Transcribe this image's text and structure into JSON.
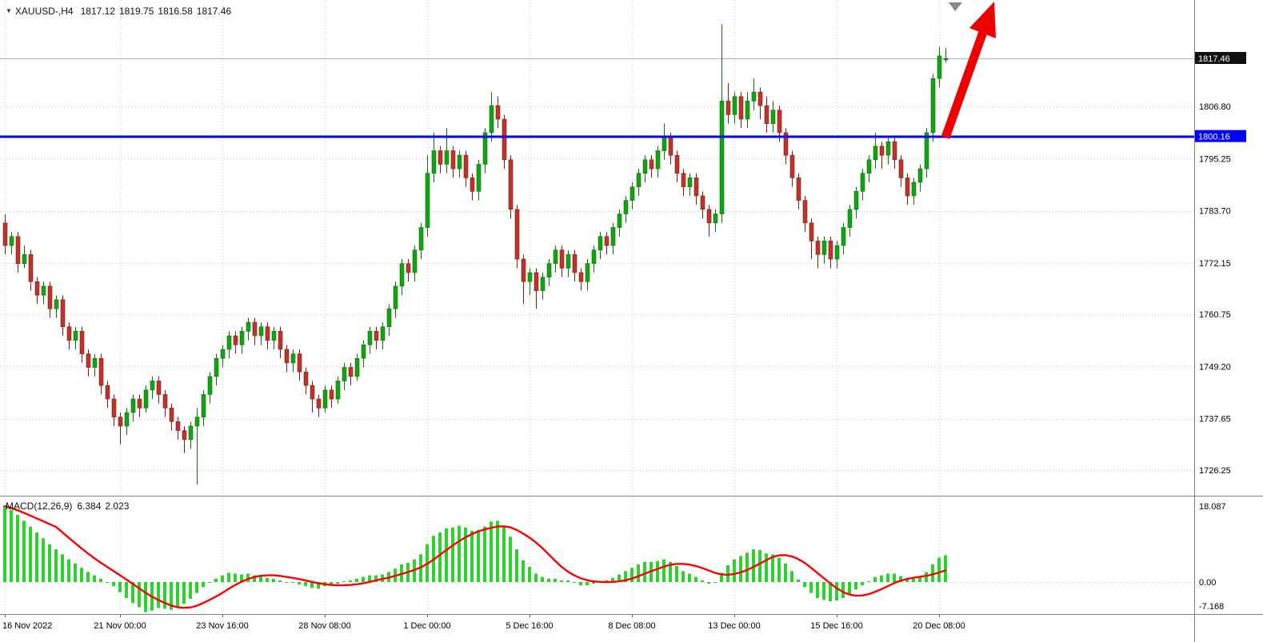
{
  "header": {
    "symbol_period": "XAUUSD-,H4",
    "open": "1817.12",
    "high": "1819.75",
    "low": "1816.58",
    "close": "1817.46"
  },
  "chart_data": {
    "type": "candlestick",
    "title": "XAUUSD-,H4",
    "symbol": "XAUUSD-",
    "timeframe": "H4",
    "grid": "dotted",
    "ylim": [
      1721,
      1830
    ],
    "current_ohlc": {
      "open": 1817.12,
      "high": 1819.75,
      "low": 1816.58,
      "close": 1817.46
    },
    "y_axis": {
      "bid_price": 1817.46,
      "labels": [
        {
          "text": "1817.46",
          "price": 1817.46,
          "type": "bid"
        },
        {
          "text": "1806.80",
          "price": 1806.8,
          "type": "grid"
        },
        {
          "text": "1800.16",
          "price": 1800.16,
          "type": "hline"
        },
        {
          "text": "1795.25",
          "price": 1795.25,
          "type": "grid"
        },
        {
          "text": "1783.70",
          "price": 1783.7,
          "type": "grid"
        },
        {
          "text": "1772.15",
          "price": 1772.15,
          "type": "grid"
        },
        {
          "text": "1760.75",
          "price": 1760.75,
          "type": "grid"
        },
        {
          "text": "1749.20",
          "price": 1749.2,
          "type": "grid"
        },
        {
          "text": "1737.65",
          "price": 1737.65,
          "type": "grid"
        },
        {
          "text": "1726.25",
          "price": 1726.25,
          "type": "grid"
        }
      ]
    },
    "x_axis": {
      "labels": [
        "16 Nov 2022",
        "21 Nov 00:00",
        "23 Nov 16:00",
        "28 Nov 08:00",
        "1 Dec 00:00",
        "5 Dec 16:00",
        "8 Dec 08:00",
        "13 Dec 00:00",
        "15 Dec 16:00",
        "20 Dec 08:00"
      ],
      "indices": [
        0,
        18,
        34,
        50,
        66,
        82,
        98,
        114,
        130,
        146
      ]
    },
    "horizontal_line": {
      "price": 1800.16,
      "label": "1800.16",
      "color": "#0000ff"
    },
    "trend_arrow": {
      "direction": "up",
      "color": "#ee0000"
    },
    "colors": {
      "bull": "#12a312",
      "bull_border": "#0a6e0a",
      "bear": "#c03328",
      "bear_border": "#7d1d14",
      "grid": "#c2c2c2",
      "macd_hist": "#2bd42b",
      "macd_signal": "#ff0000",
      "bid_badge": "#111111"
    },
    "candles": [
      [
        1781,
        1783,
        1774,
        1776
      ],
      [
        1776,
        1779,
        1774,
        1778
      ],
      [
        1778,
        1779,
        1770,
        1772
      ],
      [
        1772,
        1776,
        1771,
        1774
      ],
      [
        1774,
        1775,
        1766,
        1768
      ],
      [
        1768,
        1769,
        1763,
        1765
      ],
      [
        1765,
        1768,
        1763,
        1767
      ],
      [
        1767,
        1768,
        1760,
        1762
      ],
      [
        1762,
        1765,
        1760,
        1764
      ],
      [
        1764,
        1765,
        1756,
        1758
      ],
      [
        1758,
        1759,
        1753,
        1755
      ],
      [
        1755,
        1758,
        1753,
        1757
      ],
      [
        1757,
        1758,
        1750,
        1752
      ],
      [
        1752,
        1753,
        1747,
        1749
      ],
      [
        1749,
        1752,
        1747,
        1751
      ],
      [
        1751,
        1752,
        1743,
        1745
      ],
      [
        1745,
        1746,
        1740,
        1742
      ],
      [
        1742,
        1743,
        1736,
        1738
      ],
      [
        1738,
        1739,
        1732,
        1736
      ],
      [
        1736,
        1740,
        1734,
        1739
      ],
      [
        1739,
        1743,
        1737,
        1742
      ],
      [
        1742,
        1743,
        1738,
        1740
      ],
      [
        1740,
        1745,
        1739,
        1744
      ],
      [
        1744,
        1747,
        1742,
        1746
      ],
      [
        1746,
        1747,
        1741,
        1743
      ],
      [
        1743,
        1744,
        1738,
        1740
      ],
      [
        1740,
        1741,
        1735,
        1737
      ],
      [
        1737,
        1738,
        1733,
        1735
      ],
      [
        1735,
        1736,
        1730,
        1733
      ],
      [
        1733,
        1737,
        1731,
        1736
      ],
      [
        1736,
        1740,
        1723,
        1738
      ],
      [
        1738,
        1744,
        1736,
        1743
      ],
      [
        1743,
        1748,
        1741,
        1747
      ],
      [
        1747,
        1752,
        1745,
        1751
      ],
      [
        1751,
        1754,
        1749,
        1753
      ],
      [
        1753,
        1757,
        1751,
        1756
      ],
      [
        1756,
        1757,
        1752,
        1754
      ],
      [
        1754,
        1758,
        1752,
        1757
      ],
      [
        1757,
        1760,
        1755,
        1759
      ],
      [
        1759,
        1760,
        1754,
        1756
      ],
      [
        1756,
        1759,
        1754,
        1758
      ],
      [
        1758,
        1759,
        1753,
        1755
      ],
      [
        1755,
        1758,
        1753,
        1757
      ],
      [
        1757,
        1758,
        1751,
        1753
      ],
      [
        1753,
        1754,
        1748,
        1750
      ],
      [
        1750,
        1753,
        1748,
        1752
      ],
      [
        1752,
        1753,
        1746,
        1748
      ],
      [
        1748,
        1749,
        1743,
        1745
      ],
      [
        1745,
        1746,
        1739,
        1742
      ],
      [
        1742,
        1743,
        1738,
        1740
      ],
      [
        1740,
        1745,
        1739,
        1744
      ],
      [
        1744,
        1745,
        1740,
        1742
      ],
      [
        1742,
        1747,
        1741,
        1746
      ],
      [
        1746,
        1750,
        1744,
        1749
      ],
      [
        1749,
        1750,
        1745,
        1747
      ],
      [
        1747,
        1752,
        1746,
        1751
      ],
      [
        1751,
        1755,
        1749,
        1754
      ],
      [
        1754,
        1758,
        1752,
        1757
      ],
      [
        1757,
        1758,
        1753,
        1755
      ],
      [
        1755,
        1759,
        1753,
        1758
      ],
      [
        1758,
        1763,
        1756,
        1762
      ],
      [
        1762,
        1768,
        1760,
        1767
      ],
      [
        1767,
        1773,
        1765,
        1772
      ],
      [
        1772,
        1773,
        1768,
        1770
      ],
      [
        1770,
        1776,
        1768,
        1775
      ],
      [
        1775,
        1781,
        1773,
        1780
      ],
      [
        1780,
        1796,
        1778,
        1792
      ],
      [
        1792,
        1801,
        1790,
        1797
      ],
      [
        1797,
        1798,
        1792,
        1794
      ],
      [
        1794,
        1802,
        1792,
        1797
      ],
      [
        1797,
        1798,
        1791,
        1793
      ],
      [
        1793,
        1797,
        1791,
        1796
      ],
      [
        1796,
        1797,
        1789,
        1791
      ],
      [
        1791,
        1792,
        1786,
        1788
      ],
      [
        1788,
        1795,
        1786,
        1794
      ],
      [
        1794,
        1802,
        1792,
        1801
      ],
      [
        1801,
        1810,
        1799,
        1807
      ],
      [
        1807,
        1809,
        1802,
        1804
      ],
      [
        1804,
        1805,
        1793,
        1795
      ],
      [
        1795,
        1796,
        1782,
        1784
      ],
      [
        1784,
        1785,
        1771,
        1773
      ],
      [
        1773,
        1774,
        1763,
        1768
      ],
      [
        1768,
        1771,
        1765,
        1770
      ],
      [
        1770,
        1771,
        1762,
        1766
      ],
      [
        1766,
        1770,
        1764,
        1769
      ],
      [
        1769,
        1773,
        1767,
        1772
      ],
      [
        1772,
        1776,
        1770,
        1775
      ],
      [
        1775,
        1776,
        1769,
        1771
      ],
      [
        1771,
        1775,
        1769,
        1774
      ],
      [
        1774,
        1775,
        1768,
        1770
      ],
      [
        1770,
        1771,
        1766,
        1768
      ],
      [
        1768,
        1773,
        1766,
        1772
      ],
      [
        1772,
        1776,
        1770,
        1775
      ],
      [
        1775,
        1779,
        1773,
        1778
      ],
      [
        1778,
        1779,
        1774,
        1776
      ],
      [
        1776,
        1781,
        1774,
        1780
      ],
      [
        1780,
        1784,
        1778,
        1783
      ],
      [
        1783,
        1787,
        1781,
        1786
      ],
      [
        1786,
        1790,
        1784,
        1789
      ],
      [
        1789,
        1793,
        1787,
        1792
      ],
      [
        1792,
        1796,
        1790,
        1795
      ],
      [
        1795,
        1796,
        1791,
        1793
      ],
      [
        1793,
        1798,
        1791,
        1797
      ],
      [
        1797,
        1803,
        1795,
        1800
      ],
      [
        1800,
        1801,
        1794,
        1796
      ],
      [
        1796,
        1797,
        1790,
        1792
      ],
      [
        1792,
        1793,
        1787,
        1789
      ],
      [
        1789,
        1792,
        1787,
        1791
      ],
      [
        1791,
        1792,
        1785,
        1787
      ],
      [
        1787,
        1788,
        1782,
        1784
      ],
      [
        1784,
        1785,
        1778,
        1781
      ],
      [
        1781,
        1784,
        1779,
        1783
      ],
      [
        1783,
        1825,
        1781,
        1808
      ],
      [
        1808,
        1812,
        1803,
        1805
      ],
      [
        1805,
        1810,
        1803,
        1809
      ],
      [
        1809,
        1810,
        1802,
        1804
      ],
      [
        1804,
        1810,
        1802,
        1808
      ],
      [
        1808,
        1813,
        1806,
        1810
      ],
      [
        1810,
        1811,
        1804,
        1807
      ],
      [
        1807,
        1809,
        1801,
        1803
      ],
      [
        1803,
        1808,
        1801,
        1806
      ],
      [
        1806,
        1807,
        1799,
        1801
      ],
      [
        1801,
        1802,
        1794,
        1796
      ],
      [
        1796,
        1797,
        1789,
        1791
      ],
      [
        1791,
        1792,
        1784,
        1786
      ],
      [
        1786,
        1787,
        1779,
        1781
      ],
      [
        1781,
        1782,
        1773,
        1777
      ],
      [
        1777,
        1778,
        1771,
        1774
      ],
      [
        1774,
        1778,
        1772,
        1777
      ],
      [
        1777,
        1778,
        1771,
        1773
      ],
      [
        1773,
        1777,
        1771,
        1776
      ],
      [
        1776,
        1781,
        1774,
        1780
      ],
      [
        1780,
        1785,
        1778,
        1784
      ],
      [
        1784,
        1789,
        1782,
        1788
      ],
      [
        1788,
        1793,
        1786,
        1792
      ],
      [
        1792,
        1796,
        1790,
        1795
      ],
      [
        1795,
        1801,
        1793,
        1798
      ],
      [
        1798,
        1799,
        1793,
        1796
      ],
      [
        1796,
        1800,
        1794,
        1799
      ],
      [
        1799,
        1800,
        1793,
        1795
      ],
      [
        1795,
        1796,
        1789,
        1791
      ],
      [
        1791,
        1792,
        1785,
        1787
      ],
      [
        1787,
        1791,
        1785,
        1790
      ],
      [
        1790,
        1794,
        1788,
        1793
      ],
      [
        1793,
        1802,
        1791,
        1801
      ],
      [
        1801,
        1814,
        1799,
        1813
      ],
      [
        1813,
        1820,
        1811,
        1818
      ],
      [
        1817.12,
        1819.75,
        1816.58,
        1817.46
      ]
    ],
    "macd": {
      "name": "MACD(12,26,9)",
      "value_main": "6.384",
      "value_signal": "2.023",
      "signal_period": 9,
      "ylim": [
        -7.6,
        20.2
      ],
      "axis_labels": [
        {
          "text": "18.087",
          "value": 18.087
        },
        {
          "text": "0.00",
          "value": 0
        },
        {
          "text": "-7.168",
          "value": -7.168
        }
      ],
      "histogram": [
        18.087,
        17.2,
        16,
        14.6,
        13.2,
        11.8,
        10.4,
        9,
        7.8,
        6.6,
        5.4,
        4.4,
        3.4,
        2.4,
        1.6,
        0.8,
        0,
        -1,
        -2.4,
        -3.8,
        -5,
        -6,
        -7.168,
        -6.8,
        -6.2,
        -6.4,
        -6.6,
        -6,
        -5.2,
        -4,
        -2.6,
        -1.2,
        0,
        0.8,
        1.6,
        2.2,
        2,
        1.8,
        2,
        1.6,
        1.4,
        1,
        0.8,
        0.4,
        0,
        -0.2,
        -0.6,
        -1,
        -1.4,
        -1.6,
        -1,
        -0.8,
        -0.4,
        0.2,
        0.4,
        0.8,
        1.2,
        1.6,
        1.6,
        1.8,
        2.4,
        3.2,
        4.2,
        4.6,
        5.4,
        6.6,
        9,
        11,
        11.8,
        12.8,
        13,
        13.4,
        13,
        12.2,
        12.4,
        13.2,
        14.4,
        14.6,
        13.2,
        10.8,
        7.8,
        5.2,
        3.6,
        2,
        1.2,
        0.8,
        0.8,
        0.4,
        0.4,
        -0.2,
        -0.8,
        -0.8,
        -0.4,
        0.2,
        0.4,
        1,
        1.8,
        2.6,
        3.4,
        4.2,
        4.8,
        4.8,
        5,
        5.4,
        4.8,
        3.8,
        2.6,
        2,
        1.2,
        0.4,
        -0.4,
        -0.2,
        2.2,
        4,
        5.4,
        6.2,
        7,
        7.8,
        7.6,
        6.8,
        6.6,
        5.8,
        4.4,
        2.6,
        0.6,
        -1.2,
        -2.6,
        -3.8,
        -4.2,
        -4.6,
        -4.4,
        -3.8,
        -2.8,
        -1.8,
        -0.8,
        0.2,
        1.2,
        1.6,
        2,
        2,
        1.4,
        0.8,
        0.8,
        1.2,
        2.4,
        4.2,
        5.8,
        6.384
      ]
    }
  }
}
